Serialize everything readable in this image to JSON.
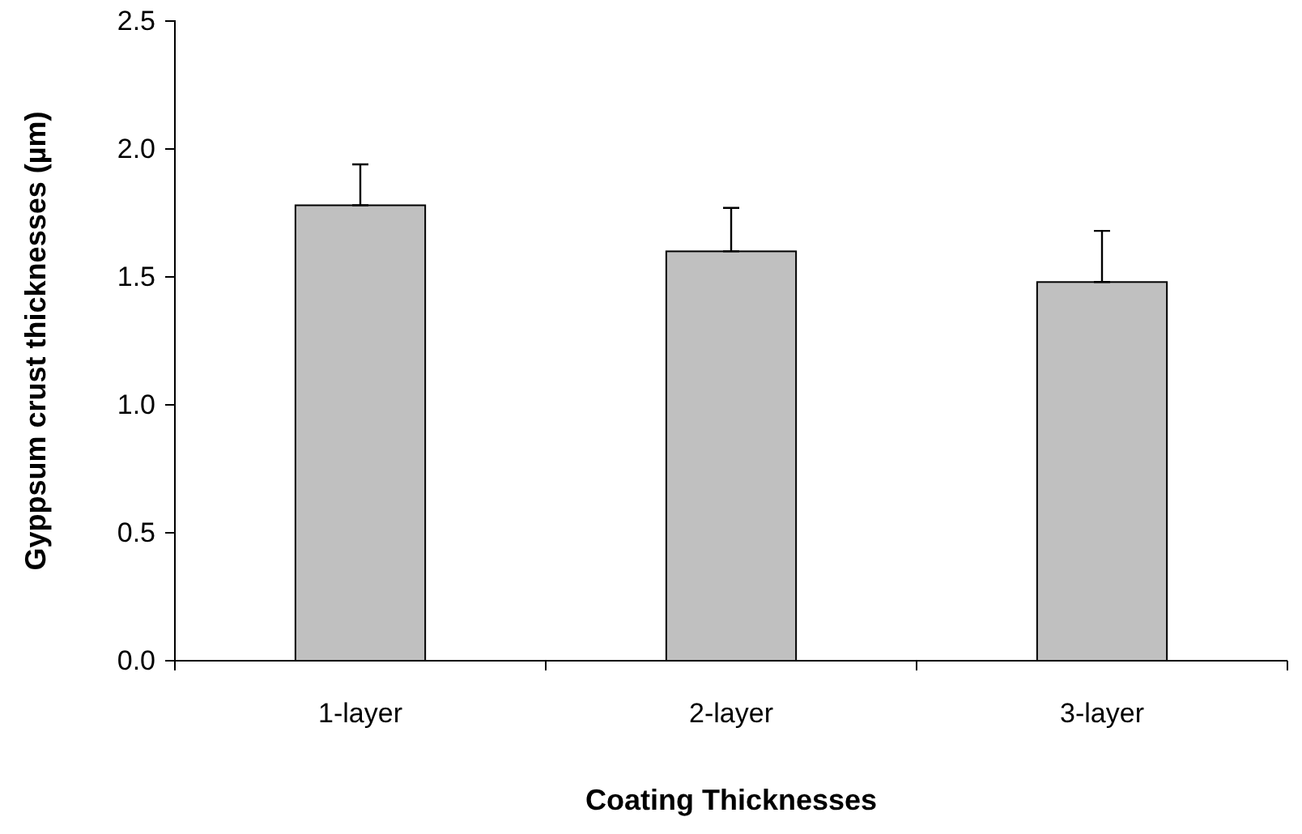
{
  "chart_data": {
    "type": "bar",
    "xlabel": "Coating Thicknesses",
    "ylabel": "Gyppsum crust thicknesses (µm)",
    "categories": [
      "1-layer",
      "2-layer",
      "3-layer"
    ],
    "values": [
      1.78,
      1.6,
      1.48
    ],
    "errors": [
      [
        1.78,
        1.94
      ],
      [
        1.6,
        1.77
      ],
      [
        1.48,
        1.68
      ]
    ],
    "color": "#c0c0c0",
    "ylim": [
      0,
      2.5
    ],
    "yticks": [
      {
        "value": 0,
        "label": "0.0"
      },
      {
        "value": 0.5,
        "label": "0.5"
      },
      {
        "value": 1,
        "label": "1.0"
      },
      {
        "value": 1.5,
        "label": "1.5"
      },
      {
        "value": 2,
        "label": "2.0"
      },
      {
        "value": 2.5,
        "label": "2.5"
      }
    ],
    "grid": false
  }
}
